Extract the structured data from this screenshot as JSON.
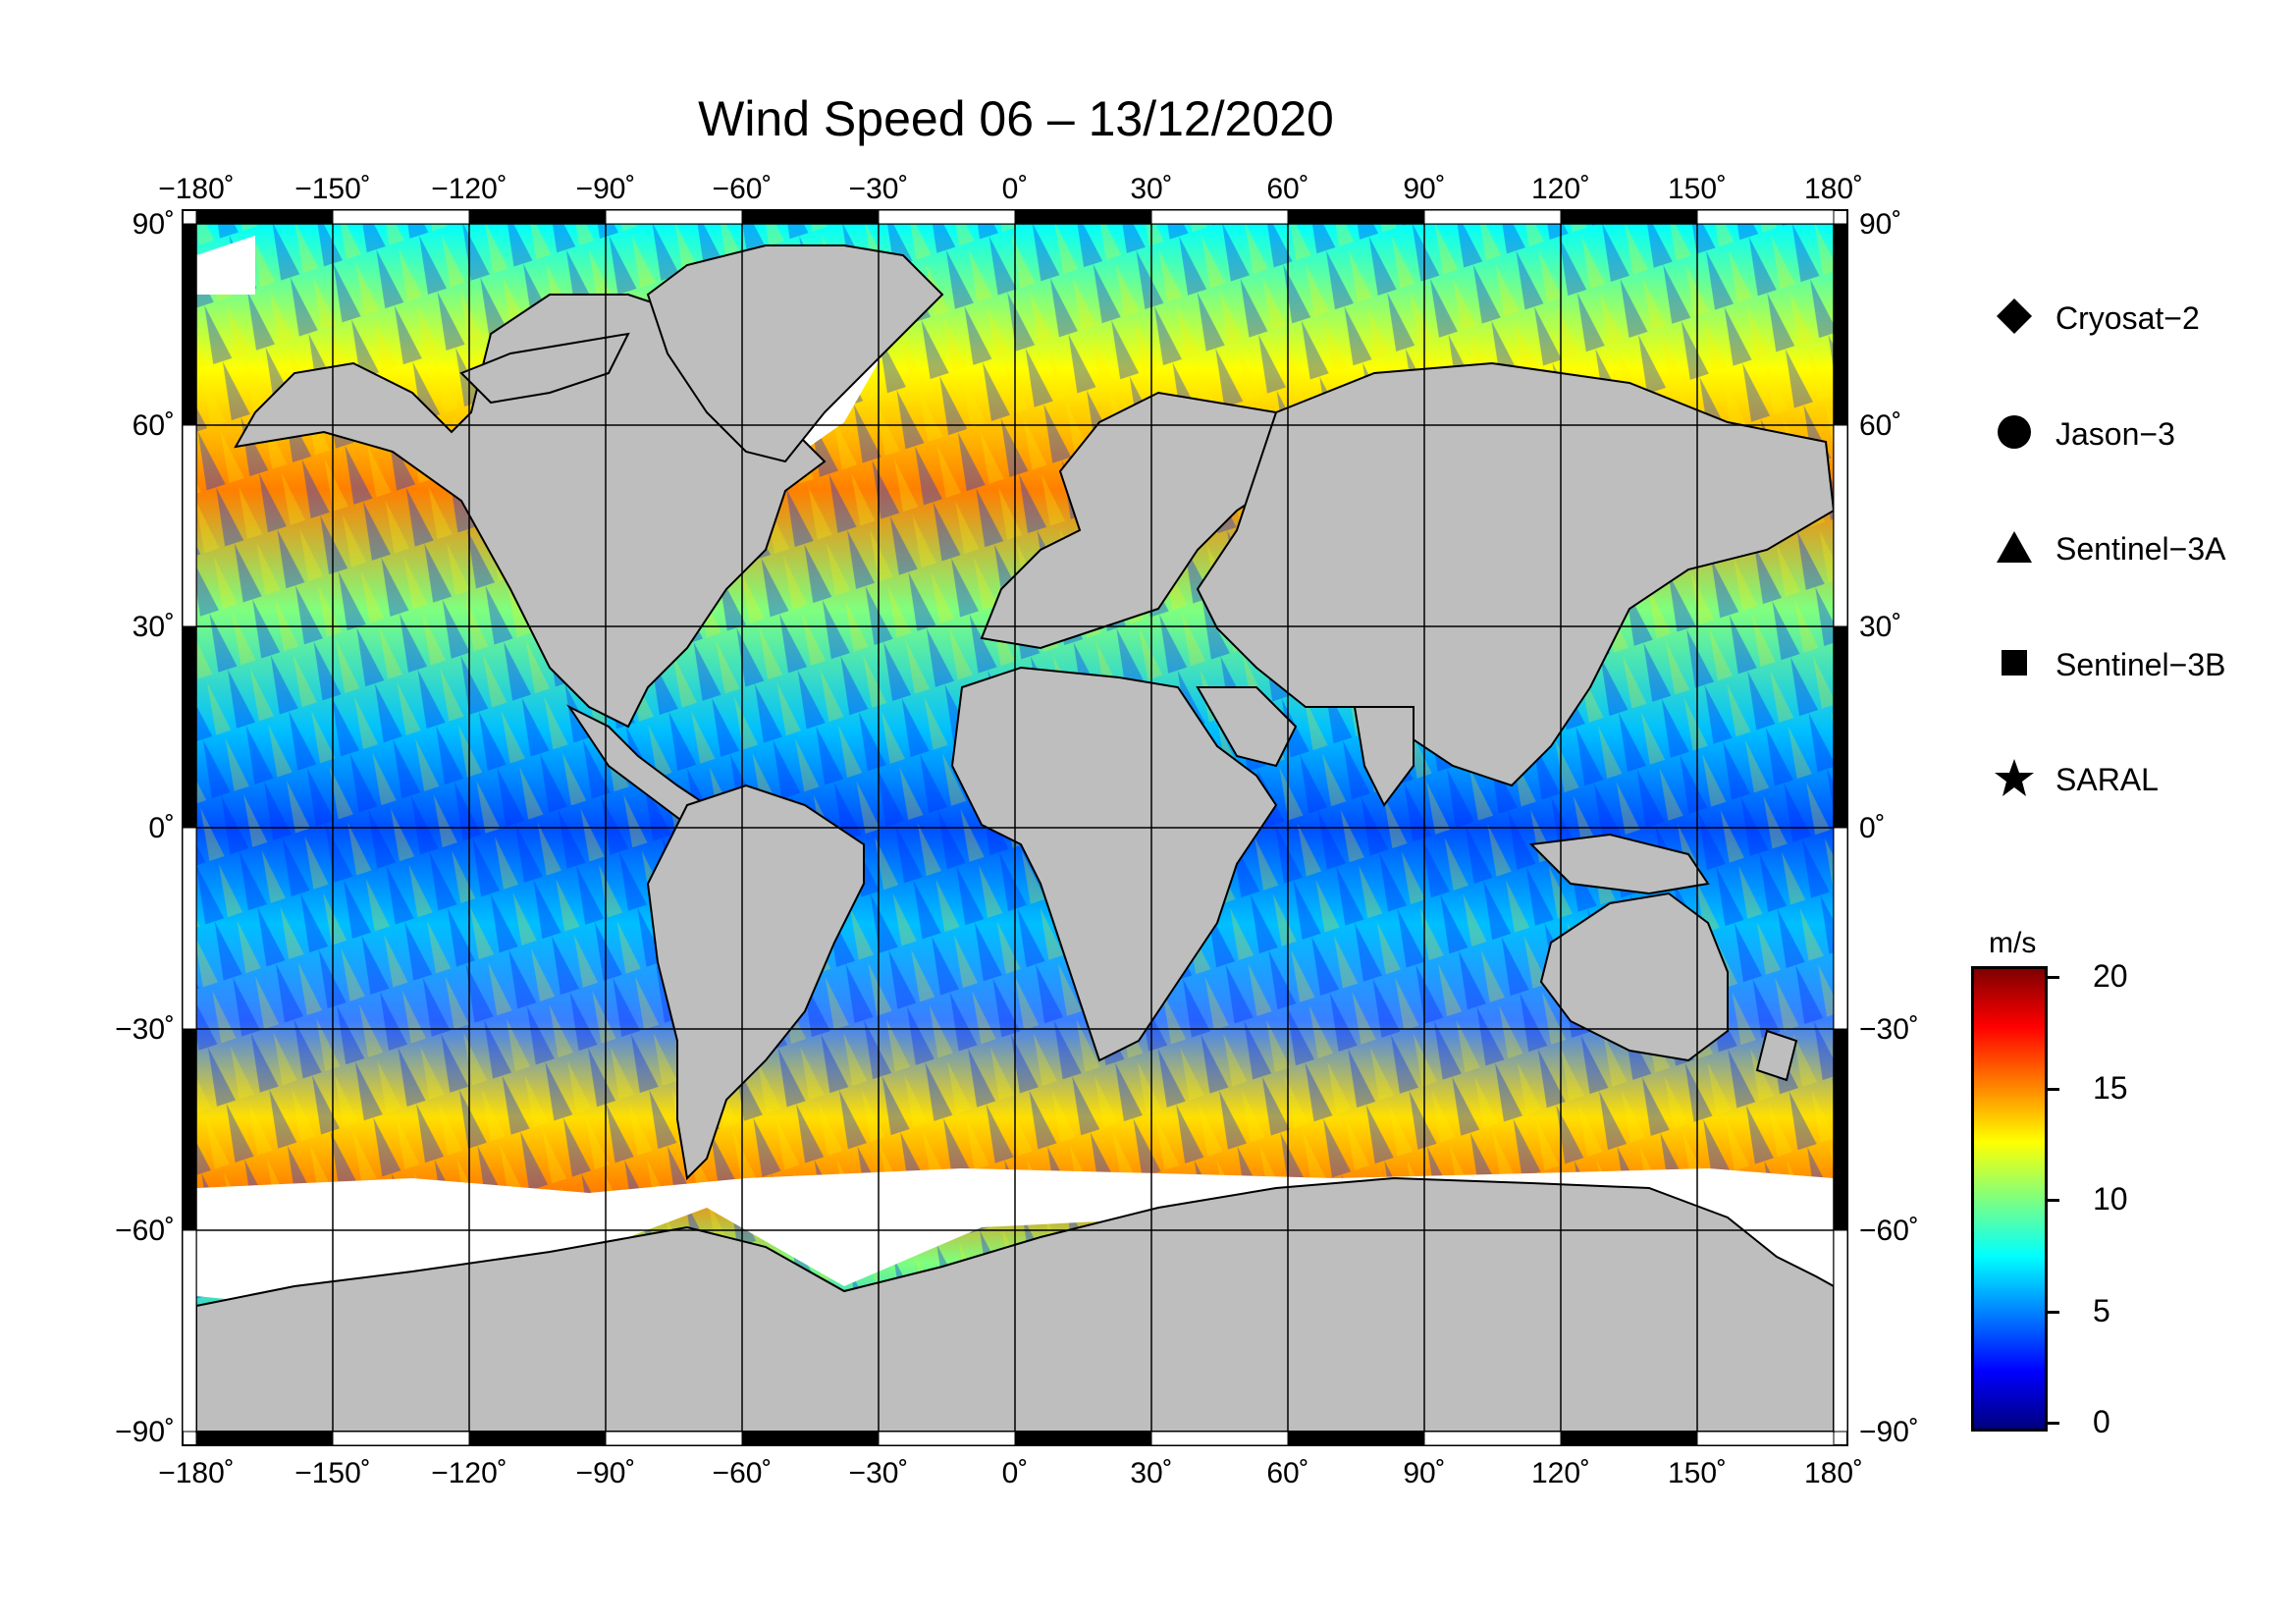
{
  "title": "Wind Speed 06 – 13/12/2020",
  "axes": {
    "lon_ticks": [
      "−180˚",
      "−150˚",
      "−120˚",
      "−90˚",
      "−60˚",
      "−30˚",
      "0˚",
      "30˚",
      "60˚",
      "90˚",
      "120˚",
      "150˚",
      "180˚"
    ],
    "lat_ticks": [
      "90˚",
      "60˚",
      "30˚",
      "0˚",
      "−30˚",
      "−60˚",
      "−90˚"
    ],
    "lon_range": [
      -180,
      180
    ],
    "lat_range": [
      -90,
      90
    ],
    "grid": true
  },
  "legend": {
    "placement": "right",
    "items": [
      {
        "label": "Cryosat−2",
        "marker": "diamond-icon"
      },
      {
        "label": "Jason−3",
        "marker": "circle-icon"
      },
      {
        "label": "Sentinel−3A",
        "marker": "triangle-icon"
      },
      {
        "label": "Sentinel−3B",
        "marker": "square-icon"
      },
      {
        "label": "SARAL",
        "marker": "star-icon"
      }
    ]
  },
  "colorbar": {
    "unit": "m/s",
    "range": [
      0,
      20
    ],
    "labels": [
      "20",
      "15",
      "10",
      "5",
      "0"
    ],
    "colors": [
      "#00007f",
      "#0000ff",
      "#007fff",
      "#00ffff",
      "#7fff7f",
      "#ffff00",
      "#ff7f00",
      "#ff0000",
      "#7f0000"
    ]
  },
  "colors": {
    "land": "#bebebe",
    "ice": "#ffffff",
    "coast": "#000000"
  }
}
